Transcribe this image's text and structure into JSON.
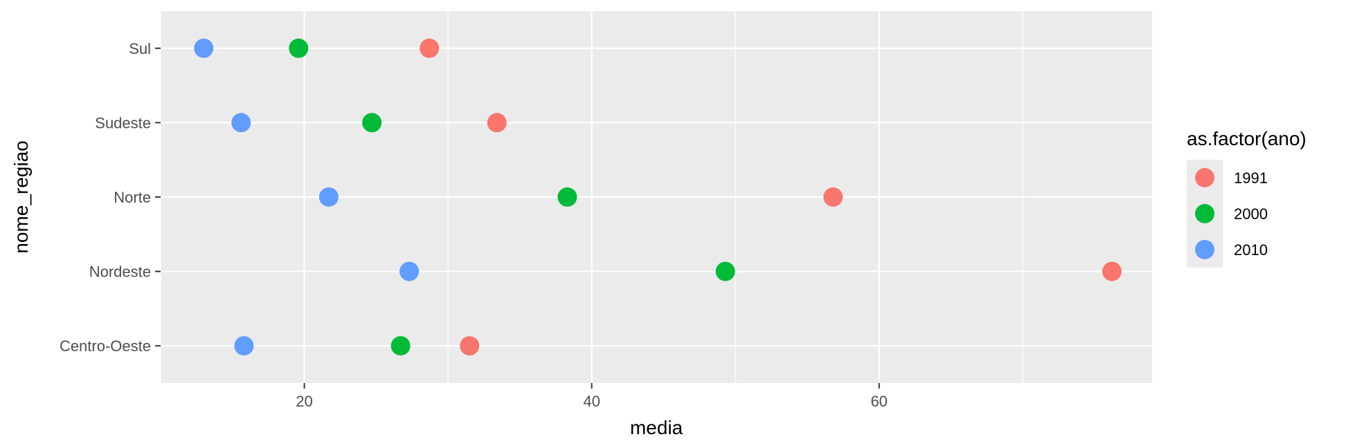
{
  "chart_data": {
    "type": "scatter",
    "xlabel": "media",
    "ylabel": "nome_regiao",
    "categories": [
      "Centro-Oeste",
      "Nordeste",
      "Norte",
      "Sudeste",
      "Sul"
    ],
    "xlim": [
      10,
      79
    ],
    "x_ticks": [
      20,
      40,
      60
    ],
    "grid": true,
    "legend": {
      "title": "as.factor(ano)",
      "position": "right"
    },
    "series": [
      {
        "name": "1991",
        "color": "#F8766D",
        "values": [
          31.5,
          76.2,
          56.8,
          33.4,
          28.7
        ]
      },
      {
        "name": "2000",
        "color": "#00BA38",
        "values": [
          26.7,
          49.3,
          38.3,
          24.7,
          19.6
        ]
      },
      {
        "name": "2010",
        "color": "#619CFF",
        "values": [
          15.8,
          27.3,
          21.7,
          15.6,
          13.0
        ]
      }
    ]
  }
}
